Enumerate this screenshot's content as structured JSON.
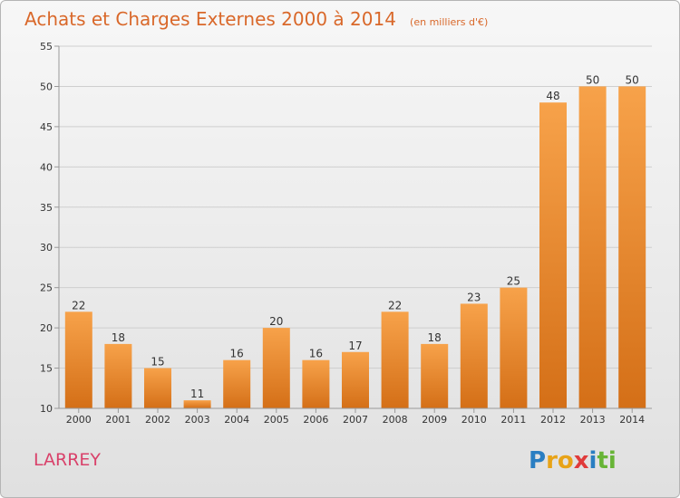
{
  "chart_data": {
    "type": "bar",
    "title": "Achats et Charges Externes 2000 à 2014",
    "subtitle": "(en milliers d'€)",
    "categories": [
      "2000",
      "2001",
      "2002",
      "2003",
      "2004",
      "2005",
      "2006",
      "2007",
      "2008",
      "2009",
      "2010",
      "2011",
      "2012",
      "2013",
      "2014"
    ],
    "values": [
      22,
      18,
      15,
      11,
      16,
      20,
      16,
      17,
      22,
      18,
      23,
      25,
      48,
      50,
      50
    ],
    "xlabel": "",
    "ylabel": "",
    "ylim": [
      10,
      55
    ],
    "yticks": [
      10,
      15,
      20,
      25,
      30,
      35,
      40,
      45,
      50,
      55
    ],
    "grid": true,
    "bar_color_light": "#f7a24a",
    "bar_color_dark": "#d46f17"
  },
  "place_label": "LARREY",
  "logo": {
    "letters": [
      "P",
      "r",
      "o",
      "x",
      "i",
      "t",
      "i"
    ],
    "colors": [
      "#2a7ec2",
      "#e8a317",
      "#e8a317",
      "#e03b3b",
      "#2a7ec2",
      "#67b436",
      "#67b436"
    ]
  }
}
